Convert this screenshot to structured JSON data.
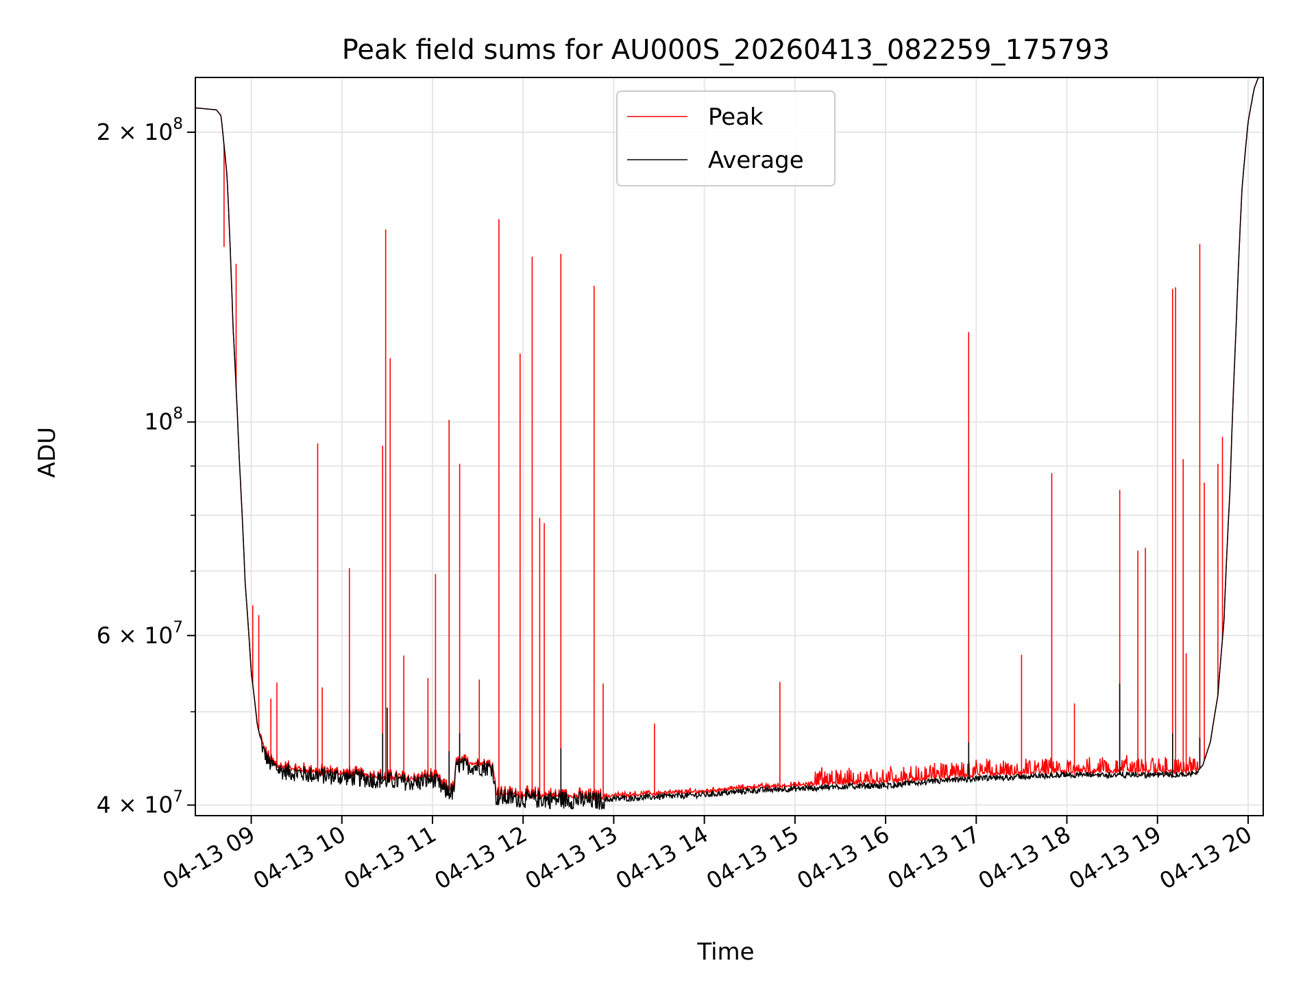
{
  "chart_data": {
    "type": "line",
    "title": "Peak field sums for AU000S_20260413_082259_175793",
    "xlabel": "Time",
    "ylabel": "ADU",
    "x_range": [
      "04-13 08:23",
      "04-13 20:10"
    ],
    "ylim": [
      39000000,
      228000000
    ],
    "yscale": "log",
    "grid": true,
    "legend_position": "top-center",
    "x_ticks": [
      "04-13 09",
      "04-13 10",
      "04-13 11",
      "04-13 12",
      "04-13 13",
      "04-13 14",
      "04-13 15",
      "04-13 16",
      "04-13 17",
      "04-13 18",
      "04-13 19",
      "04-13 20"
    ],
    "y_ticks": [
      {
        "value": 40000000,
        "mantissa": "4",
        "exp": "7"
      },
      {
        "value": 60000000,
        "mantissa": "6",
        "exp": "7"
      },
      {
        "value": 100000000,
        "mantissa": "",
        "exp": "8"
      },
      {
        "value": 200000000,
        "mantissa": "2",
        "exp": "8"
      }
    ],
    "series": [
      {
        "name": "Peak",
        "color": "#ff0000"
      },
      {
        "name": "Average",
        "color": "#000000"
      }
    ],
    "baseline": [
      [
        "08:23",
        212
      ],
      [
        "08:37",
        211
      ],
      [
        "08:40",
        208
      ],
      [
        "08:44",
        180
      ],
      [
        "08:48",
        125
      ],
      [
        "08:52",
        92
      ],
      [
        "08:56",
        68
      ],
      [
        "09:00",
        55
      ],
      [
        "09:04",
        48.5
      ],
      [
        "09:08",
        45.5
      ],
      [
        "09:12",
        44.2
      ],
      [
        "09:20",
        43.4
      ],
      [
        "09:40",
        43.0
      ],
      [
        "10:00",
        42.8
      ],
      [
        "10:30",
        42.4
      ],
      [
        "10:50",
        42.2
      ],
      [
        "11:00",
        42.6
      ],
      [
        "11:08",
        41.4
      ],
      [
        "11:14",
        41.2
      ],
      [
        "11:16",
        44.0
      ],
      [
        "11:40",
        43.7
      ],
      [
        "11:42",
        40.8
      ],
      [
        "12:00",
        40.6
      ],
      [
        "12:30",
        40.5
      ],
      [
        "12:50",
        40.4
      ],
      [
        "13:00",
        40.6
      ],
      [
        "13:30",
        40.8
      ],
      [
        "14:00",
        41.0
      ],
      [
        "14:30",
        41.4
      ],
      [
        "15:00",
        41.6
      ],
      [
        "15:30",
        41.8
      ],
      [
        "16:00",
        41.9
      ],
      [
        "16:30",
        42.3
      ],
      [
        "17:00",
        42.6
      ],
      [
        "17:30",
        42.8
      ],
      [
        "18:00",
        43.0
      ],
      [
        "18:30",
        43.0
      ],
      [
        "19:00",
        43.0
      ],
      [
        "19:25",
        43.1
      ],
      [
        "19:30",
        44.0
      ],
      [
        "19:35",
        46.5
      ],
      [
        "19:40",
        52
      ],
      [
        "19:44",
        62
      ],
      [
        "19:48",
        85
      ],
      [
        "19:52",
        125
      ],
      [
        "19:56",
        175
      ],
      [
        "20:00",
        205
      ],
      [
        "20:04",
        222
      ],
      [
        "20:10",
        235
      ]
    ],
    "peak_spikes": [
      [
        "08:42",
        152
      ],
      [
        "08:50",
        146
      ],
      [
        "09:01",
        64.5
      ],
      [
        "09:05",
        63
      ],
      [
        "09:13",
        51.6
      ],
      [
        "09:17",
        53.6
      ],
      [
        "09:44",
        95
      ],
      [
        "09:47",
        53
      ],
      [
        "10:05",
        70.5
      ],
      [
        "10:27",
        94.5
      ],
      [
        "10:29",
        158.5
      ],
      [
        "10:32",
        116.5
      ],
      [
        "10:41",
        57.2
      ],
      [
        "10:57",
        54.2
      ],
      [
        "11:02",
        69.5
      ],
      [
        "11:11",
        100.5
      ],
      [
        "11:18",
        90.5
      ],
      [
        "11:31",
        54
      ],
      [
        "11:44",
        162.5
      ],
      [
        "11:58",
        117.8
      ],
      [
        "12:06",
        148.5
      ],
      [
        "12:11",
        79.5
      ],
      [
        "12:14",
        78.5
      ],
      [
        "12:25",
        149.5
      ],
      [
        "12:47",
        138.5
      ],
      [
        "12:53",
        53.5
      ],
      [
        "13:27",
        48.6
      ],
      [
        "14:50",
        53.7
      ],
      [
        "16:55",
        124
      ],
      [
        "17:30",
        57.3
      ],
      [
        "17:50",
        88.5
      ],
      [
        "18:05",
        51
      ],
      [
        "18:35",
        85
      ],
      [
        "18:47",
        73.5
      ],
      [
        "18:52",
        74
      ],
      [
        "19:10",
        137.5
      ],
      [
        "19:12",
        138
      ],
      [
        "19:17",
        91.5
      ],
      [
        "19:19",
        57.5
      ],
      [
        "19:28",
        153
      ],
      [
        "19:31",
        86.5
      ],
      [
        "19:40",
        90.5
      ],
      [
        "19:43",
        96.5
      ]
    ],
    "avg_spikes": [
      [
        "10:27",
        47.5
      ],
      [
        "10:30",
        50.5
      ],
      [
        "11:11",
        45.5
      ],
      [
        "11:18",
        47.5
      ],
      [
        "12:25",
        45.8
      ],
      [
        "16:55",
        46.5
      ],
      [
        "18:35",
        53.5
      ],
      [
        "19:10",
        47.5
      ],
      [
        "19:28",
        47
      ]
    ]
  }
}
